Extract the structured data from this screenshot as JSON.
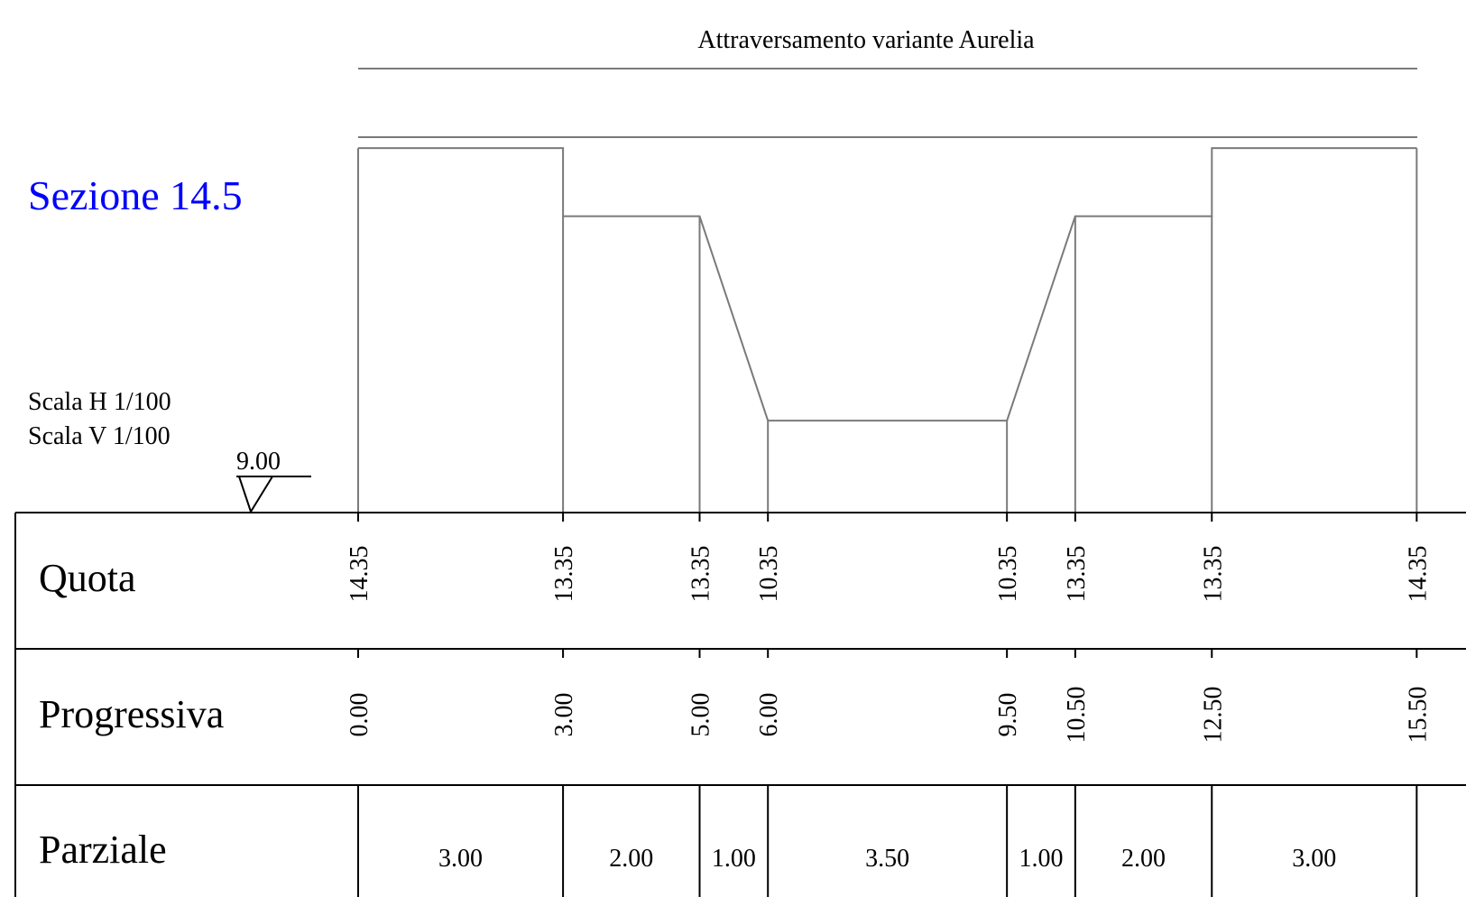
{
  "title": "Attraversamento variante Aurelia",
  "section_name": "Sezione 14.5",
  "section_color": "#0000ff",
  "scale_h": "Scala H  1/100",
  "scale_v": "Scala V  1/100",
  "datum": "9.00",
  "row_labels": {
    "quota": "Quota",
    "progressiva": "Progressiva",
    "parziale": "Parziale"
  },
  "points": [
    {
      "progressiva": 0.0,
      "quota": 14.35,
      "quota_label": "14.35",
      "prog_label": "0.00"
    },
    {
      "progressiva": 3.0,
      "quota": 13.35,
      "quota_label": "13.35",
      "prog_label": "3.00"
    },
    {
      "progressiva": 5.0,
      "quota": 13.35,
      "quota_label": "13.35",
      "prog_label": "5.00"
    },
    {
      "progressiva": 6.0,
      "quota": 10.35,
      "quota_label": "10.35",
      "prog_label": "6.00"
    },
    {
      "progressiva": 9.5,
      "quota": 10.35,
      "quota_label": "10.35",
      "prog_label": "9.50"
    },
    {
      "progressiva": 10.5,
      "quota": 13.35,
      "quota_label": "13.35",
      "prog_label": "10.50"
    },
    {
      "progressiva": 12.5,
      "quota": 13.35,
      "quota_label": "13.35",
      "prog_label": "12.50"
    },
    {
      "progressiva": 15.5,
      "quota": 14.35,
      "quota_label": "14.35",
      "prog_label": "15.50"
    }
  ],
  "parziali": [
    "3.00",
    "2.00",
    "1.00",
    "3.50",
    "1.00",
    "2.00",
    "3.00"
  ]
}
